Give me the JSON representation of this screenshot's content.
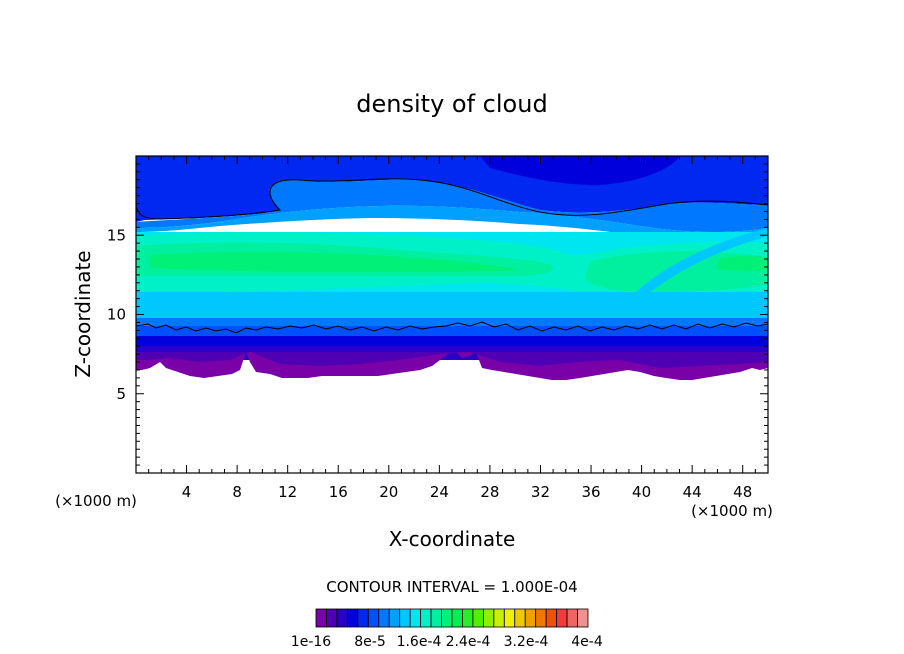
{
  "chart_data": {
    "type": "heatmap",
    "title": "density of cloud",
    "xlabel": "X-coordinate",
    "ylabel": "Z-coordinate",
    "x_unit_left": "(×1000 m)",
    "x_unit_right": "(×1000 m)",
    "xlim": [
      0,
      50
    ],
    "ylim": [
      0,
      20
    ],
    "x_ticks": [
      4,
      8,
      12,
      16,
      20,
      24,
      28,
      32,
      36,
      40,
      44,
      48
    ],
    "y_ticks": [
      5,
      10,
      15
    ],
    "x_tick_labels": [
      "4",
      "8",
      "12",
      "16",
      "20",
      "24",
      "28",
      "32",
      "36",
      "40",
      "44",
      "48"
    ],
    "y_tick_labels": [
      "5",
      "10",
      "15"
    ],
    "contour_interval_label": "CONTOUR INTERVAL = 1.000E-04",
    "colorbar_labels": [
      "1e-16",
      "8e-5",
      "1.6e-4",
      "2.4e-4",
      "3.2e-4",
      "4e-4"
    ],
    "colorbar_colors": [
      "#7a00a8",
      "#5000b4",
      "#2800c8",
      "#0000dc",
      "#0028f0",
      "#0050ff",
      "#0078ff",
      "#00a0ff",
      "#00c8ff",
      "#00e6f0",
      "#00f0c8",
      "#00f0a0",
      "#00f078",
      "#00f050",
      "#28f028",
      "#50f000",
      "#8cf000",
      "#c8f000",
      "#f0f000",
      "#f0c800",
      "#f0a000",
      "#f07800",
      "#f05000",
      "#f03c3c",
      "#f06464",
      "#f09090"
    ],
    "bands": [
      {
        "z_bottom": 6.5,
        "z_top": 7.2,
        "value": "1e-16"
      },
      {
        "z_bottom": 7.2,
        "z_top": 9.0,
        "value": "2e-5"
      },
      {
        "z_bottom": 9.0,
        "z_top": 10.5,
        "value": "6e-5"
      },
      {
        "z_bottom": 10.5,
        "z_top": 12.0,
        "value": "1.0e-4"
      },
      {
        "z_bottom": 12.0,
        "z_top": 15.5,
        "value": "1.4e-4"
      },
      {
        "z_bottom": 15.5,
        "z_top": 17.5,
        "value": "8e-5"
      },
      {
        "z_bottom": 17.5,
        "z_top": 20.0,
        "value": "4e-5"
      }
    ],
    "grid": false,
    "legend": "bottom colorbar"
  }
}
